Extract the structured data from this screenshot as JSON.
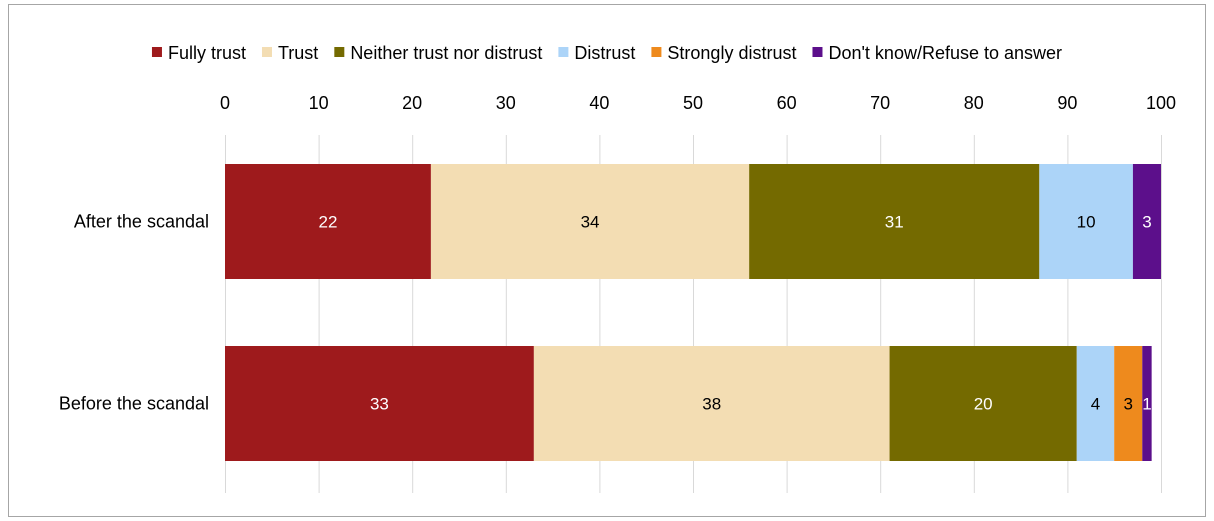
{
  "chart_data": {
    "type": "bar",
    "orientation": "horizontal",
    "stacked": true,
    "categories": [
      "After the scandal",
      "Before the scandal"
    ],
    "series": [
      {
        "name": "Fully trust",
        "color": "#9E1A1C",
        "label_color": "#ffffff",
        "values": [
          22,
          33
        ]
      },
      {
        "name": "Trust",
        "color": "#F3DDB3",
        "label_color": "#000000",
        "values": [
          34,
          38
        ]
      },
      {
        "name": "Neither trust nor distrust",
        "color": "#746A00",
        "label_color": "#ffffff",
        "values": [
          31,
          20
        ]
      },
      {
        "name": "Distrust",
        "color": "#ACD4F8",
        "label_color": "#000000",
        "values": [
          10,
          4
        ]
      },
      {
        "name": "Strongly distrust",
        "color": "#EE8A1D",
        "label_color": "#000000",
        "values": [
          0,
          3
        ]
      },
      {
        "name": "Don't know/Refuse to answer",
        "color": "#5C0F8B",
        "label_color": "#ffffff",
        "values": [
          3,
          1
        ]
      }
    ],
    "xlim": [
      0,
      100
    ],
    "xticks": [
      0,
      10,
      20,
      30,
      40,
      50,
      60,
      70,
      80,
      90,
      100
    ],
    "axis_position": "top",
    "grid": true,
    "legend_position": "top",
    "title": "",
    "xlabel": "",
    "ylabel": ""
  }
}
